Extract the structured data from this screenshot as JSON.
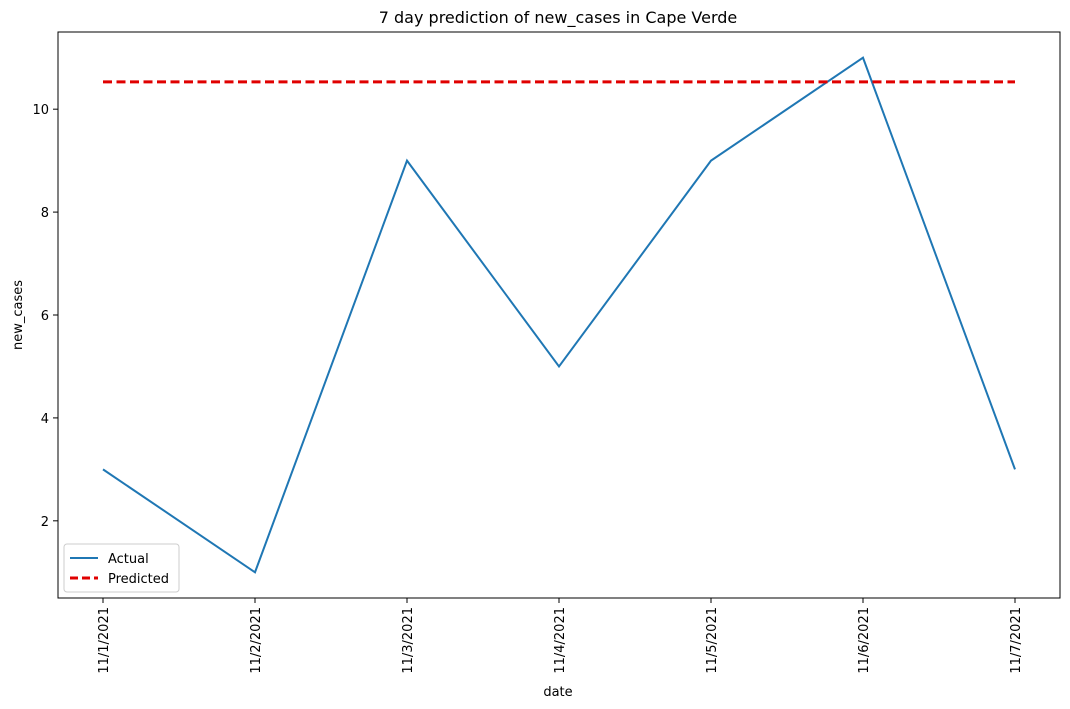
{
  "chart_data": {
    "type": "line",
    "title": "7 day prediction of new_cases in Cape Verde",
    "xlabel": "date",
    "ylabel": "new_cases",
    "x": [
      "11/1/2021",
      "11/2/2021",
      "11/3/2021",
      "11/4/2021",
      "11/5/2021",
      "11/6/2021",
      "11/7/2021"
    ],
    "series": [
      {
        "name": "Actual",
        "values": [
          3,
          1,
          9,
          5,
          9,
          11,
          3
        ],
        "color": "#1f77b4",
        "style": "solid"
      },
      {
        "name": "Predicted",
        "values": [
          10.53,
          10.53,
          10.53,
          10.53,
          10.53,
          10.53,
          10.53
        ],
        "color": "#e00000",
        "style": "dashed"
      }
    ],
    "ylim": [
      0.5,
      11.5
    ],
    "yticks": [
      2,
      4,
      6,
      8,
      10
    ],
    "grid": false,
    "legend_position": "lower-left"
  }
}
